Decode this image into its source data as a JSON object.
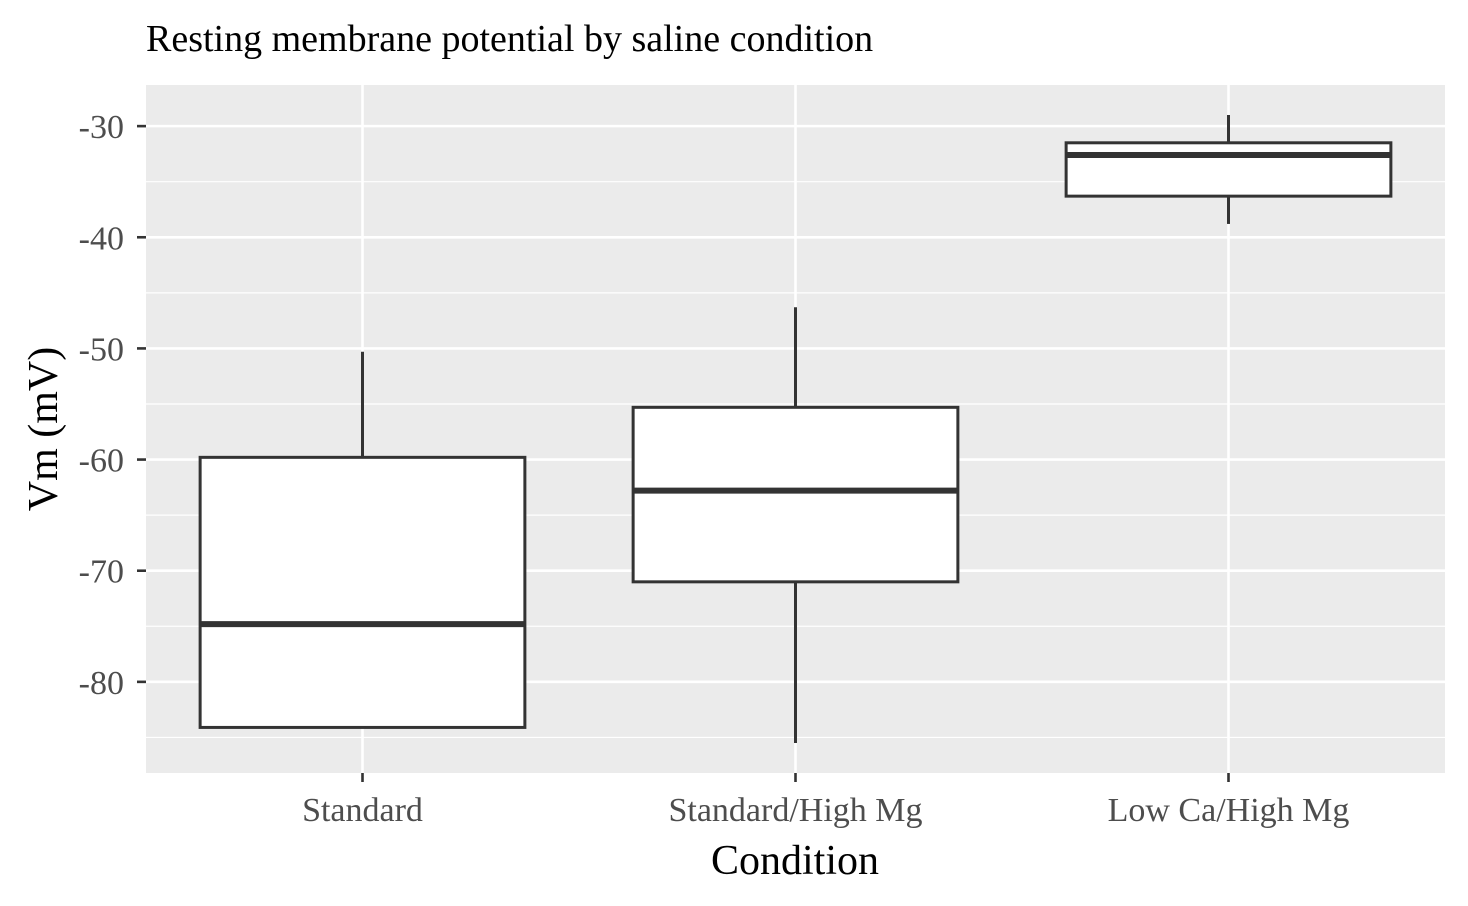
{
  "chart_data": {
    "type": "boxplot",
    "title": "Resting membrane potential by saline condition",
    "xlabel": "Condition",
    "ylabel": "Vm (mV)",
    "categories": [
      "Standard",
      "Standard/High Mg",
      "Low Ca/High Mg"
    ],
    "ylim": [
      -88.2,
      -26.3
    ],
    "y_ticks": [
      -80,
      -70,
      -60,
      -50,
      -40,
      -30
    ],
    "y_tick_labels": [
      "-80",
      "-70",
      "-60",
      "-50",
      "-40",
      "-30"
    ],
    "grid": true,
    "legend": "none",
    "boxes": [
      {
        "category": "Standard",
        "min": -84.1,
        "q1": -84.1,
        "median": -74.8,
        "q3": -59.8,
        "max": -50.3
      },
      {
        "category": "Standard/High Mg",
        "min": -85.5,
        "q1": -71.0,
        "median": -62.8,
        "q3": -55.3,
        "max": -46.3
      },
      {
        "category": "Low Ca/High Mg",
        "min": -38.8,
        "q1": -36.3,
        "median": -32.6,
        "q3": -31.5,
        "max": -29.0
      }
    ],
    "colors": {
      "panel_background": "#ebebeb",
      "grid": "#ffffff",
      "box_fill": "#ffffff",
      "box_stroke": "#333333",
      "tick_text": "#4d4d4d",
      "tick_mark": "#333333"
    }
  }
}
